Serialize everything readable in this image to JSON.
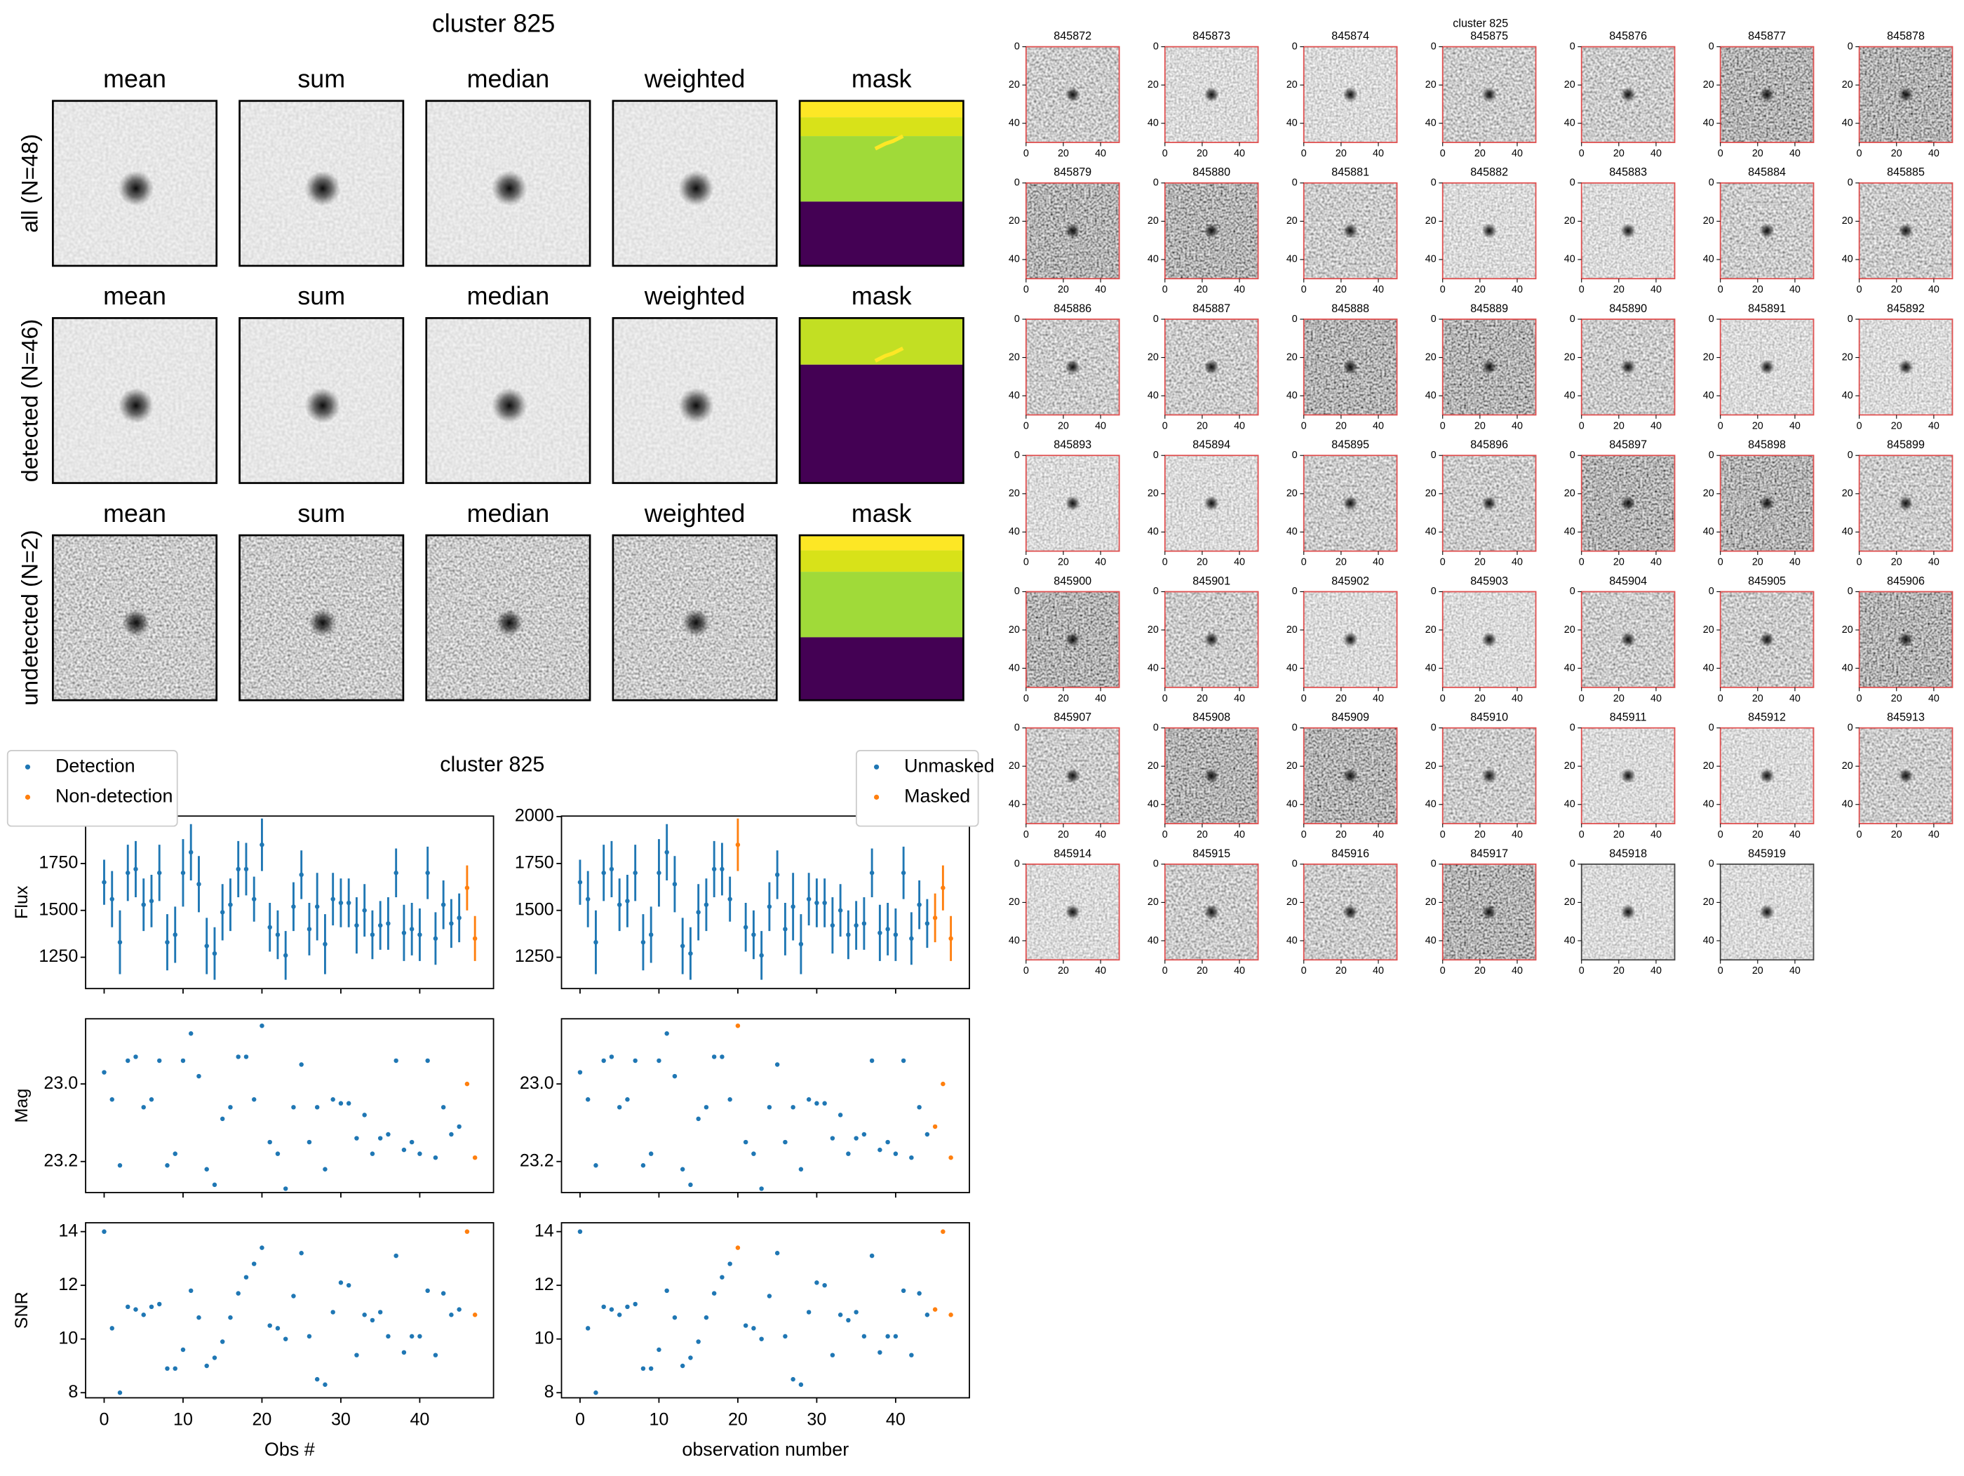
{
  "summary": {
    "title": "cluster 825",
    "columns": [
      "mean",
      "sum",
      "median",
      "weighted",
      "mask"
    ],
    "rows": [
      "all (N=48)",
      "detected (N=46)",
      "undetected (N=2)"
    ]
  },
  "chart_data": {
    "type": "errorbar-scatter",
    "title": "cluster 825",
    "xlim": [
      -2.35,
      49.35
    ],
    "xticks": [
      0,
      10,
      20,
      30,
      40
    ],
    "panels": [
      {
        "ylabel": "Flux",
        "ylim": [
          1083,
          2003
        ],
        "yticks": [
          1250,
          1500,
          1750,
          2000
        ],
        "values": [
          1650,
          1560,
          1330,
          1700,
          1720,
          1530,
          1550,
          1700,
          1330,
          1370,
          1700,
          1810,
          1640,
          1310,
          1270,
          1490,
          1530,
          1720,
          1720,
          1560,
          1850,
          1410,
          1370,
          1260,
          1520,
          1690,
          1400,
          1520,
          1320,
          1560,
          1540,
          1540,
          1420,
          1500,
          1370,
          1420,
          1430,
          1700,
          1380,
          1400,
          1370,
          1700,
          1350,
          1530,
          1430,
          1460,
          1620,
          1350
        ],
        "errors": [
          120,
          150,
          170,
          150,
          150,
          140,
          140,
          150,
          150,
          150,
          180,
          150,
          150,
          150,
          140,
          150,
          140,
          150,
          140,
          120,
          140,
          130,
          130,
          130,
          130,
          130,
          140,
          180,
          160,
          140,
          130,
          130,
          150,
          140,
          130,
          130,
          140,
          130,
          150,
          140,
          140,
          140,
          140,
          130,
          130,
          130,
          120,
          120
        ]
      },
      {
        "ylabel": "Mag",
        "ylim": [
          23.28,
          22.832
        ],
        "yticks": [
          {
            "value": 23,
            "label": "23.0"
          },
          23.2
        ],
        "values": [
          22.97,
          23.04,
          23.21,
          22.94,
          22.93,
          23.06,
          23.04,
          22.94,
          23.21,
          23.18,
          22.94,
          22.87,
          22.98,
          23.22,
          23.26,
          23.09,
          23.06,
          22.93,
          22.93,
          23.04,
          22.85,
          23.15,
          23.18,
          23.27,
          23.06,
          22.95,
          23.15,
          23.06,
          23.22,
          23.04,
          23.05,
          23.05,
          23.14,
          23.08,
          23.18,
          23.14,
          23.13,
          22.94,
          23.17,
          23.15,
          23.18,
          22.94,
          23.19,
          23.06,
          23.13,
          23.11,
          23.0,
          23.19
        ]
      },
      {
        "ylabel": "SNR",
        "ylim": [
          7.81,
          14.33
        ],
        "yticks": [
          8,
          10,
          12,
          14
        ],
        "values": [
          14,
          10.4,
          8,
          11.2,
          11.1,
          10.9,
          11.2,
          11.3,
          8.9,
          8.9,
          9.6,
          11.8,
          10.8,
          9,
          9.3,
          9.9,
          10.8,
          11.7,
          12.3,
          12.8,
          13.4,
          10.5,
          10.4,
          10,
          11.6,
          13.2,
          10.1,
          8.5,
          8.3,
          11,
          12.1,
          12,
          9.4,
          10.9,
          10.7,
          11,
          10.1,
          13.1,
          9.5,
          10.1,
          10.1,
          11.8,
          9.4,
          11.7,
          10.9,
          11.1,
          14,
          10.9
        ]
      }
    ],
    "columns": [
      {
        "xlabel": "Obs #",
        "legend": "upper left",
        "series": [
          {
            "name": "Detection",
            "color": "#1f77b4",
            "x": [
              0,
              1,
              2,
              3,
              4,
              5,
              6,
              7,
              8,
              9,
              10,
              11,
              12,
              13,
              14,
              15,
              16,
              17,
              18,
              19,
              20,
              21,
              22,
              23,
              24,
              25,
              26,
              27,
              28,
              29,
              30,
              31,
              32,
              33,
              34,
              35,
              36,
              37,
              38,
              39,
              40,
              41,
              42,
              43,
              44,
              45
            ]
          },
          {
            "name": "Non-detection",
            "color": "#ff7f0e",
            "x": [
              46,
              47
            ]
          }
        ]
      },
      {
        "xlabel": "observation number",
        "legend": "upper right",
        "series": [
          {
            "name": "Unmasked",
            "color": "#1f77b4",
            "x": [
              0,
              1,
              2,
              3,
              4,
              5,
              6,
              7,
              8,
              9,
              10,
              11,
              12,
              13,
              14,
              15,
              16,
              17,
              18,
              19,
              21,
              22,
              23,
              24,
              25,
              26,
              27,
              28,
              29,
              30,
              31,
              32,
              33,
              34,
              35,
              36,
              37,
              38,
              39,
              40,
              41,
              42,
              43,
              44
            ]
          },
          {
            "name": "Masked",
            "color": "#ff7f0e",
            "x": [
              20,
              45,
              46,
              47
            ]
          }
        ]
      }
    ]
  },
  "stamps": {
    "title": "cluster 825",
    "ids": [
      "845872",
      "845873",
      "845874",
      "845875",
      "845876",
      "845877",
      "845878",
      "845879",
      "845880",
      "845881",
      "845882",
      "845883",
      "845884",
      "845885",
      "845886",
      "845887",
      "845888",
      "845889",
      "845890",
      "845891",
      "845892",
      "845893",
      "845894",
      "845895",
      "845896",
      "845897",
      "845898",
      "845899",
      "845900",
      "845901",
      "845902",
      "845903",
      "845904",
      "845905",
      "845906",
      "845907",
      "845908",
      "845909",
      "845910",
      "845911",
      "845912",
      "845913",
      "845914",
      "845915",
      "845916",
      "845917",
      "845918",
      "845919"
    ],
    "lim": [
      0,
      50
    ],
    "ticks": [
      0,
      20,
      40
    ],
    "frame_color": "#e05050",
    "undetected_frame_color": "#444444",
    "undetected_index": [
      46,
      47
    ]
  }
}
